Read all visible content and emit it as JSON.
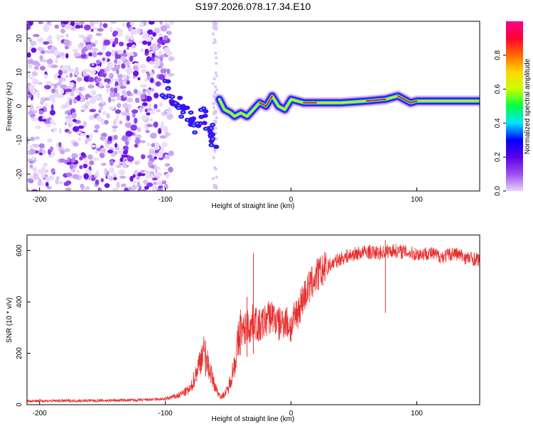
{
  "title": "S197.2026.078.17.34.E10",
  "chart_data": [
    {
      "type": "heatmap",
      "name": "spectrogram",
      "xlabel": "Height of straight line (km)",
      "ylabel": "Frequency (Hz)",
      "xlim": [
        -210,
        150
      ],
      "ylim": [
        -25,
        25
      ],
      "xticks": [
        -200,
        -100,
        0,
        100
      ],
      "yticks": [
        -20,
        -10,
        0,
        10,
        20
      ],
      "colorbar": {
        "label": "Normalized spectral amplitude",
        "range": [
          0,
          1
        ],
        "ticks": [
          "0.0",
          "0.2",
          "0.4",
          "0.6",
          "0.8"
        ],
        "colors": [
          "#e8d4fb",
          "#9d4df0",
          "#5a00e6",
          "#0000ff",
          "#00e5ff",
          "#00ff44",
          "#c8ff00",
          "#ffd700",
          "#ff6a00",
          "#ff0033",
          "#ff0088"
        ]
      },
      "noise_region_km": [
        -210,
        -95
      ],
      "signal_track": [
        {
          "x": -100,
          "y": 5
        },
        {
          "x": -95,
          "y": 3
        },
        {
          "x": -90,
          "y": 1
        },
        {
          "x": -85,
          "y": -1
        },
        {
          "x": -80,
          "y": -3
        },
        {
          "x": -75,
          "y": -6
        },
        {
          "x": -70,
          "y": -3
        },
        {
          "x": -65,
          "y": -7
        },
        {
          "x": -62,
          "y": -10
        },
        {
          "x": -57,
          "y": 2
        },
        {
          "x": -53,
          "y": -1
        },
        {
          "x": -48,
          "y": -2
        },
        {
          "x": -45,
          "y": -3
        },
        {
          "x": -40,
          "y": -2
        },
        {
          "x": -35,
          "y": -3
        },
        {
          "x": -30,
          "y": -1
        },
        {
          "x": -25,
          "y": 1
        },
        {
          "x": -20,
          "y": 0
        },
        {
          "x": -15,
          "y": 3
        },
        {
          "x": -10,
          "y": 0
        },
        {
          "x": -5,
          "y": -1
        },
        {
          "x": 0,
          "y": 2
        },
        {
          "x": 10,
          "y": 1
        },
        {
          "x": 20,
          "y": 1
        },
        {
          "x": 40,
          "y": 1
        },
        {
          "x": 60,
          "y": 1.5
        },
        {
          "x": 75,
          "y": 2
        },
        {
          "x": 85,
          "y": 3
        },
        {
          "x": 95,
          "y": 1
        },
        {
          "x": 100,
          "y": 1.5
        },
        {
          "x": 120,
          "y": 1.5
        },
        {
          "x": 150,
          "y": 1.5
        }
      ]
    },
    {
      "type": "line",
      "name": "snr",
      "xlabel": "Height of straight line (km)",
      "ylabel": "SNR (10 * v/v)",
      "xlim": [
        -210,
        150
      ],
      "ylim": [
        0,
        660
      ],
      "xticks": [
        -200,
        -100,
        0,
        100
      ],
      "yticks": [
        0,
        200,
        400,
        600
      ],
      "color": "#e83030",
      "series": [
        {
          "name": "SNR",
          "x": [
            -210,
            -180,
            -150,
            -120,
            -100,
            -90,
            -80,
            -75,
            -70,
            -65,
            -62,
            -58,
            -55,
            -50,
            -45,
            -42,
            -40,
            -38,
            -35,
            -32,
            -30,
            -25,
            -20,
            -15,
            -10,
            -5,
            0,
            5,
            10,
            15,
            20,
            30,
            40,
            50,
            60,
            70,
            80,
            90,
            100,
            110,
            120,
            130,
            140,
            150
          ],
          "y": [
            15,
            15,
            16,
            18,
            22,
            35,
            60,
            130,
            210,
            140,
            90,
            45,
            30,
            60,
            160,
            240,
            300,
            280,
            310,
            300,
            330,
            300,
            330,
            350,
            310,
            330,
            300,
            360,
            420,
            460,
            500,
            540,
            570,
            585,
            595,
            590,
            600,
            595,
            585,
            590,
            575,
            590,
            570,
            565
          ]
        }
      ],
      "spikes": [
        {
          "x": -30,
          "y": 590
        },
        {
          "x": -68,
          "y": 250
        },
        {
          "x": -35,
          "y": 420
        },
        {
          "x": 75,
          "y": 640
        }
      ]
    }
  ]
}
